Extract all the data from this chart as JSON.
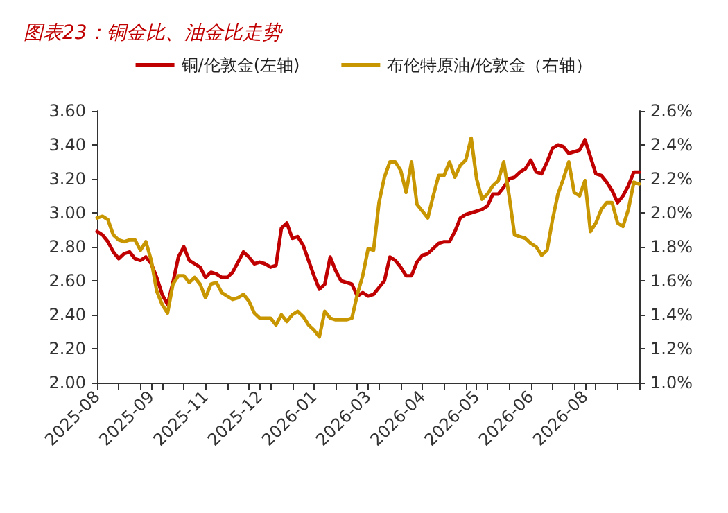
{
  "chart_data": {
    "type": "line",
    "title": "图表23：铜金比、油金比走势",
    "categories": [
      "2025-08",
      null,
      null,
      null,
      null,
      null,
      null,
      null,
      null,
      null,
      "2025-09",
      null,
      null,
      null,
      null,
      null,
      null,
      null,
      null,
      null,
      "2025-11",
      null,
      null,
      null,
      null,
      null,
      null,
      null,
      null,
      null,
      "2025-12",
      null,
      null,
      null,
      null,
      null,
      null,
      null,
      null,
      null,
      "2026-01",
      null,
      null,
      null,
      null,
      null,
      null,
      null,
      null,
      null,
      "2026-03",
      null,
      null,
      null,
      null,
      null,
      null,
      null,
      null,
      null,
      "2026-04",
      null,
      null,
      null,
      null,
      null,
      null,
      null,
      null,
      null,
      "2026-05",
      null,
      null,
      null,
      null,
      null,
      null,
      null,
      null,
      null,
      "2026-06",
      null,
      null,
      null,
      null,
      null,
      null,
      null,
      null,
      null,
      "2026-08",
      null,
      null,
      null,
      null,
      null,
      null,
      null,
      null,
      null,
      null
    ],
    "series": [
      {
        "name": "铜/伦敦金(左轴)",
        "color": "#c00000",
        "values": [
          2.89,
          2.87,
          2.83,
          2.77,
          2.73,
          2.76,
          2.77,
          2.73,
          2.72,
          2.74,
          2.7,
          2.62,
          2.52,
          2.46,
          2.59,
          2.74,
          2.8,
          2.72,
          2.7,
          2.68,
          2.62,
          2.65,
          2.64,
          2.62,
          2.62,
          2.65,
          2.71,
          2.77,
          2.74,
          2.7,
          2.71,
          2.7,
          2.68,
          2.69,
          2.91,
          2.94,
          2.85,
          2.86,
          2.81,
          2.72,
          2.63,
          2.55,
          2.58,
          2.74,
          2.66,
          2.6,
          2.59,
          2.58,
          2.51,
          2.53,
          2.51,
          2.52,
          2.56,
          2.6,
          2.74,
          2.72,
          2.68,
          2.63,
          2.63,
          2.71,
          2.75,
          2.76,
          2.79,
          2.82,
          2.83,
          2.83,
          2.89,
          2.97,
          2.99,
          3.0,
          3.01,
          3.02,
          3.04,
          3.11,
          3.11,
          3.15,
          3.2,
          3.21,
          3.24,
          3.26,
          3.31,
          3.24,
          3.23,
          3.3,
          3.38,
          3.4,
          3.39,
          3.35,
          3.36,
          3.37,
          3.43,
          3.33,
          3.23,
          3.22,
          3.18,
          3.13,
          3.06,
          3.1,
          3.16,
          3.24,
          3.24
        ]
      },
      {
        "name": "布伦特原油/伦敦金（右轴）",
        "color": "#c89600",
        "axis": "y2",
        "values": [
          1.97,
          1.98,
          1.96,
          1.87,
          1.84,
          1.83,
          1.84,
          1.84,
          1.78,
          1.83,
          1.72,
          1.54,
          1.46,
          1.41,
          1.58,
          1.63,
          1.63,
          1.59,
          1.62,
          1.58,
          1.5,
          1.58,
          1.59,
          1.53,
          1.51,
          1.49,
          1.5,
          1.52,
          1.48,
          1.41,
          1.38,
          1.38,
          1.38,
          1.34,
          1.4,
          1.36,
          1.4,
          1.42,
          1.39,
          1.34,
          1.31,
          1.27,
          1.42,
          1.38,
          1.37,
          1.37,
          1.37,
          1.38,
          1.52,
          1.63,
          1.79,
          1.78,
          2.06,
          2.21,
          2.3,
          2.3,
          2.25,
          2.12,
          2.3,
          2.05,
          2.01,
          1.97,
          2.1,
          2.22,
          2.22,
          2.3,
          2.21,
          2.28,
          2.31,
          2.44,
          2.2,
          2.08,
          2.11,
          2.16,
          2.19,
          2.3,
          2.1,
          1.87,
          1.86,
          1.85,
          1.82,
          1.8,
          1.75,
          1.78,
          1.96,
          2.11,
          2.2,
          2.3,
          2.12,
          2.1,
          2.19,
          1.89,
          1.94,
          2.02,
          2.06,
          2.06,
          1.94,
          1.92,
          2.02,
          2.18,
          2.17
        ]
      }
    ],
    "ylim": [
      2.0,
      3.6
    ],
    "yticks": [
      {
        "value": 2.0,
        "label": "2.00"
      },
      {
        "value": 2.2,
        "label": "2.20"
      },
      {
        "value": 2.4,
        "label": "2.40"
      },
      {
        "value": 2.6,
        "label": "2.60"
      },
      {
        "value": 2.8,
        "label": "2.80"
      },
      {
        "value": 3.0,
        "label": "3.00"
      },
      {
        "value": 3.2,
        "label": "3.20"
      },
      {
        "value": 3.4,
        "label": "3.40"
      },
      {
        "value": 3.6,
        "label": "3.60"
      }
    ],
    "y2lim": [
      1.0,
      2.6
    ],
    "y2ticks": [
      {
        "value": 1.0,
        "label": "1.0%"
      },
      {
        "value": 1.2,
        "label": "1.2%"
      },
      {
        "value": 1.4,
        "label": "1.4%"
      },
      {
        "value": 1.6,
        "label": "1.6%"
      },
      {
        "value": 1.8,
        "label": "1.8%"
      },
      {
        "value": 2.0,
        "label": "2.0%"
      },
      {
        "value": 2.2,
        "label": "2.2%"
      },
      {
        "value": 2.4,
        "label": "2.4%"
      },
      {
        "value": 2.6,
        "label": "2.6%"
      }
    ],
    "grid": false,
    "legend": "top",
    "marker": "none",
    "line_style": "solid"
  }
}
